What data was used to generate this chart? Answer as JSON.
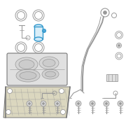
{
  "bg_color": "#ffffff",
  "lc": "#999999",
  "lc2": "#777777",
  "hc": "#3399cc",
  "hc2": "#55aadd",
  "fc_tank": "#e8e8e8",
  "fc_bracket": "#d8d5c0",
  "border_color": "#cccccc"
}
